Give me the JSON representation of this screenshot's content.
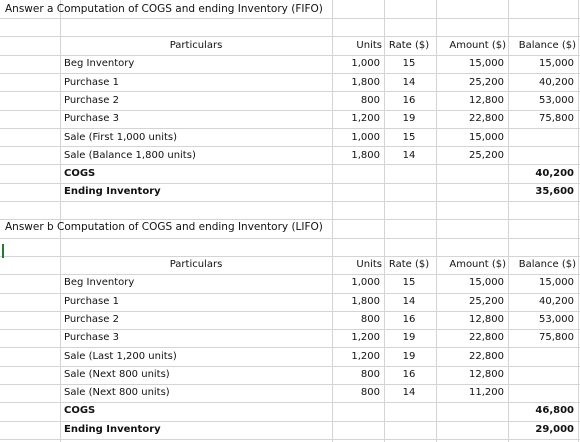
{
  "section_a": {
    "title": "Answer a  Computation of COGS and ending Inventory (FIFO)",
    "headers": {
      "particulars": "Particulars",
      "units": "Units",
      "rate": "Rate ($)",
      "amount": "Amount ($)",
      "balance": "Balance ($)"
    },
    "rows": [
      {
        "label": "Beg Inventory",
        "units": "1,000",
        "rate": "15",
        "amount": "15,000",
        "balance": "15,000"
      },
      {
        "label": "Purchase 1",
        "units": "1,800",
        "rate": "14",
        "amount": "25,200",
        "balance": "40,200"
      },
      {
        "label": "Purchase 2",
        "units": "800",
        "rate": "16",
        "amount": "12,800",
        "balance": "53,000"
      },
      {
        "label": "Purchase 3",
        "units": "1,200",
        "rate": "19",
        "amount": "22,800",
        "balance": "75,800"
      },
      {
        "label": "Sale (First 1,000 units)",
        "units": "1,000",
        "rate": "15",
        "amount": "15,000",
        "balance": ""
      },
      {
        "label": "Sale (Balance 1,800 units)",
        "units": "1,800",
        "rate": "14",
        "amount": "25,200",
        "balance": ""
      }
    ],
    "cogs": {
      "label": "COGS",
      "value": "40,200"
    },
    "ending": {
      "label": "Ending Inventory",
      "value": "35,600"
    }
  },
  "section_b": {
    "title": "Answer b  Computation of COGS and ending Inventory (LIFO)",
    "headers": {
      "particulars": "Particulars",
      "units": "Units",
      "rate": "Rate ($)",
      "amount": "Amount ($)",
      "balance": "Balance ($)"
    },
    "rows": [
      {
        "label": "Beg Inventory",
        "units": "1,000",
        "rate": "15",
        "amount": "15,000",
        "balance": "15,000"
      },
      {
        "label": "Purchase 1",
        "units": "1,800",
        "rate": "14",
        "amount": "25,200",
        "balance": "40,200"
      },
      {
        "label": "Purchase 2",
        "units": "800",
        "rate": "16",
        "amount": "12,800",
        "balance": "53,000"
      },
      {
        "label": "Purchase 3",
        "units": "1,200",
        "rate": "19",
        "amount": "22,800",
        "balance": "75,800"
      },
      {
        "label": "Sale (Last 1,200 units)",
        "units": "1,200",
        "rate": "19",
        "amount": "22,800",
        "balance": ""
      },
      {
        "label": "Sale (Next 800 units)",
        "units": "800",
        "rate": "16",
        "amount": "12,800",
        "balance": ""
      },
      {
        "label": "Sale (Next 800 units)",
        "units": "800",
        "rate": "14",
        "amount": "11,200",
        "balance": ""
      }
    ],
    "cogs": {
      "label": "COGS",
      "value": "46,800"
    },
    "ending": {
      "label": "Ending Inventory",
      "value": "29,000"
    }
  }
}
